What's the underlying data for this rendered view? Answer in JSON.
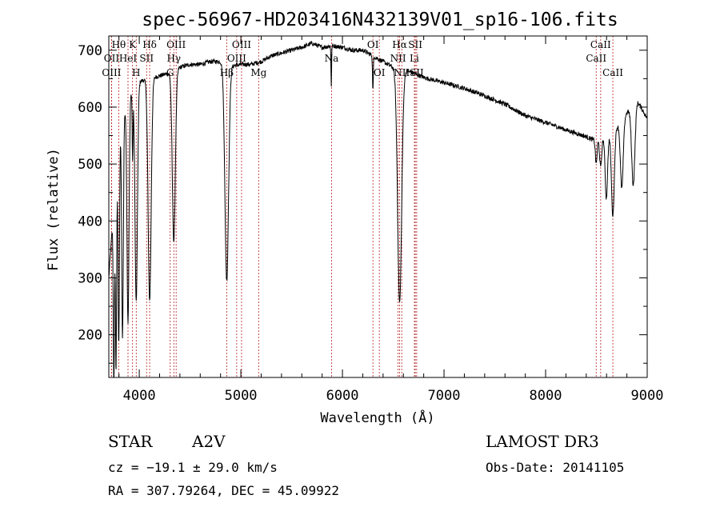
{
  "chart_data": {
    "type": "line",
    "title": "spec-56967-HD203416N432139V01_sp16-106.fits",
    "xlabel": "Wavelength (Å)",
    "ylabel": "Flux (relative)",
    "xlim": [
      3700,
      9000
    ],
    "ylim": [
      125,
      725
    ],
    "xticks": [
      4000,
      5000,
      6000,
      7000,
      8000,
      9000
    ],
    "yticks": [
      200,
      300,
      400,
      500,
      600,
      700
    ],
    "continuum": [
      [
        3700,
        300
      ],
      [
        3800,
        560
      ],
      [
        3900,
        620
      ],
      [
        4000,
        645
      ],
      [
        4100,
        650
      ],
      [
        4200,
        655
      ],
      [
        4300,
        660
      ],
      [
        4400,
        670
      ],
      [
        4500,
        675
      ],
      [
        4600,
        675
      ],
      [
        4700,
        680
      ],
      [
        4800,
        680
      ],
      [
        4900,
        672
      ],
      [
        5000,
        675
      ],
      [
        5100,
        675
      ],
      [
        5200,
        680
      ],
      [
        5300,
        690
      ],
      [
        5400,
        695
      ],
      [
        5500,
        700
      ],
      [
        5600,
        705
      ],
      [
        5700,
        712
      ],
      [
        5800,
        705
      ],
      [
        5900,
        708
      ],
      [
        6000,
        705
      ],
      [
        6100,
        700
      ],
      [
        6200,
        700
      ],
      [
        6300,
        690
      ],
      [
        6400,
        680
      ],
      [
        6500,
        670
      ],
      [
        6600,
        665
      ],
      [
        6700,
        660
      ],
      [
        6800,
        652
      ],
      [
        7000,
        643
      ],
      [
        7200,
        633
      ],
      [
        7400,
        620
      ],
      [
        7600,
        605
      ],
      [
        7800,
        585
      ],
      [
        8000,
        573
      ],
      [
        8200,
        560
      ],
      [
        8400,
        548
      ],
      [
        8500,
        540
      ],
      [
        8600,
        550
      ],
      [
        8700,
        565
      ],
      [
        8800,
        590
      ],
      [
        8900,
        612
      ],
      [
        9000,
        580
      ]
    ],
    "absorption_features": [
      {
        "center": 3750,
        "depth": 320,
        "width": 6
      },
      {
        "center": 3771,
        "depth": 350,
        "width": 6
      },
      {
        "center": 3798,
        "depth": 370,
        "width": 7
      },
      {
        "center": 3835,
        "depth": 390,
        "width": 8
      },
      {
        "center": 3889,
        "depth": 390,
        "width": 10
      },
      {
        "center": 3934,
        "depth": 120,
        "width": 4
      },
      {
        "center": 3970,
        "depth": 380,
        "width": 12
      },
      {
        "center": 4102,
        "depth": 390,
        "width": 15
      },
      {
        "center": 4340,
        "depth": 300,
        "width": 15
      },
      {
        "center": 4861,
        "depth": 380,
        "width": 18
      },
      {
        "center": 5890,
        "depth": 70,
        "width": 3
      },
      {
        "center": 6300,
        "depth": 60,
        "width": 4
      },
      {
        "center": 6563,
        "depth": 410,
        "width": 20
      },
      {
        "center": 8498,
        "depth": 40,
        "width": 8
      },
      {
        "center": 8542,
        "depth": 50,
        "width": 10
      },
      {
        "center": 8598,
        "depth": 110,
        "width": 12
      },
      {
        "center": 8662,
        "depth": 150,
        "width": 14
      },
      {
        "center": 8750,
        "depth": 120,
        "width": 14
      },
      {
        "center": 8863,
        "depth": 140,
        "width": 16
      }
    ],
    "line_markers": [
      {
        "label": "Hθ",
        "wavelength": 3798,
        "row": 0
      },
      {
        "label": "OII",
        "wavelength": 3727,
        "row": 1
      },
      {
        "label": "OIII",
        "wavelength": 3727,
        "row": 2
      },
      {
        "label": "K",
        "wavelength": 3934,
        "row": 0
      },
      {
        "label": "HeI",
        "wavelength": 3889,
        "row": 1
      },
      {
        "label": "H",
        "wavelength": 3970,
        "row": 2
      },
      {
        "label": "Hδ",
        "wavelength": 4102,
        "row": 0
      },
      {
        "label": "SII",
        "wavelength": 4072,
        "row": 1
      },
      {
        "label": "OIII",
        "wavelength": 4363,
        "row": 0
      },
      {
        "label": "Hγ",
        "wavelength": 4340,
        "row": 1
      },
      {
        "label": "G",
        "wavelength": 4304,
        "row": 2
      },
      {
        "label": "Hβ",
        "wavelength": 4861,
        "row": 2
      },
      {
        "label": "OIII",
        "wavelength": 5007,
        "row": 0
      },
      {
        "label": "OIII",
        "wavelength": 4959,
        "row": 1
      },
      {
        "label": "Mg",
        "wavelength": 5175,
        "row": 2
      },
      {
        "label": "Na",
        "wavelength": 5893,
        "row": 1
      },
      {
        "label": "OI",
        "wavelength": 6300,
        "row": 0
      },
      {
        "label": "OI",
        "wavelength": 6363,
        "row": 2
      },
      {
        "label": "Hα",
        "wavelength": 6563,
        "row": 0
      },
      {
        "label": "NII",
        "wavelength": 6548,
        "row": 1
      },
      {
        "label": "NII",
        "wavelength": 6584,
        "row": 2
      },
      {
        "label": "SII",
        "wavelength": 6717,
        "row": 0
      },
      {
        "label": "Li",
        "wavelength": 6708,
        "row": 1
      },
      {
        "label": "SII",
        "wavelength": 6731,
        "row": 2
      },
      {
        "label": "CaII",
        "wavelength": 8542,
        "row": 0
      },
      {
        "label": "CaII",
        "wavelength": 8498,
        "row": 1
      },
      {
        "label": "CaII",
        "wavelength": 8662,
        "row": 2
      }
    ],
    "colors": {
      "spectrum": "#000000",
      "marker": "#b22222",
      "axes": "#000000"
    }
  },
  "info": {
    "object_type": "STAR",
    "spectral_class": "A2V",
    "survey": "LAMOST DR3",
    "cz": "cz = −19.1 ± 29.0 km/s",
    "obs_date": "Obs-Date: 20141105",
    "coords": "RA = 307.79264, DEC =  45.09922"
  }
}
